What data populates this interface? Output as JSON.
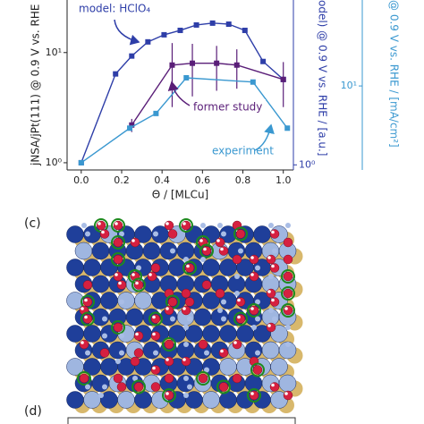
{
  "chart_data": {
    "type": "line",
    "x_label": "Θ / [MLCu]",
    "y_label": "jNSA/jPt(111) @ 0.9 V vs. RHE",
    "y2_label": "odel) @ 0.9 V vs. RHE / [a.u.]",
    "y3_label": "@ 0.9 V vs. RHE / [mA/cm²]",
    "xlim": [
      -0.07,
      1.05
    ],
    "xticks": [
      {
        "value": 0,
        "label": "0.0"
      },
      0.2,
      0.4,
      0.6,
      0.8,
      {
        "value": 1,
        "label": "1.0"
      }
    ],
    "ylim": [
      0.86,
      30
    ],
    "yticks": [
      {
        "value": 1,
        "label": "10⁰"
      },
      {
        "value": 10,
        "label": "10¹"
      }
    ],
    "log_y": true,
    "y2lim": [
      0.9,
      30
    ],
    "y2ticks": [
      {
        "value": 1,
        "label": "10⁰"
      }
    ],
    "y3lim": [
      1.75,
      59.5
    ],
    "y3ticks": [
      {
        "value": 10,
        "label": "10¹"
      }
    ],
    "series": [
      {
        "name": "model: HClO₄",
        "color": "#2e3ea8",
        "x": [
          0,
          0.17,
          0.25,
          0.33,
          0.41,
          0.49,
          0.57,
          0.65,
          0.73,
          0.81,
          0.9,
          1.0
        ],
        "values": [
          1.0,
          6.4,
          9.3,
          12.5,
          14.5,
          15.9,
          17.8,
          18.5,
          18.1,
          15.9,
          8.3,
          5.7
        ]
      },
      {
        "name": "former study",
        "color": "#5a1e78",
        "x": [
          0.25,
          0.45,
          0.55,
          0.67,
          0.77,
          1.0
        ],
        "values": [
          2.2,
          7.7,
          8.0,
          8.0,
          7.7,
          5.7
        ],
        "errors": [
          0.3,
          4.5,
          4.0,
          3.5,
          3.0,
          2.5
        ]
      },
      {
        "name": "experiment",
        "color": "#3a98d0",
        "x": [
          0,
          0.24,
          0.37,
          0.52,
          0.85,
          1.02
        ],
        "values": [
          1.0,
          2.06,
          2.8,
          5.9,
          5.4,
          2.06
        ]
      }
    ]
  },
  "panels": {
    "c": "(c)",
    "d": "(d)"
  }
}
